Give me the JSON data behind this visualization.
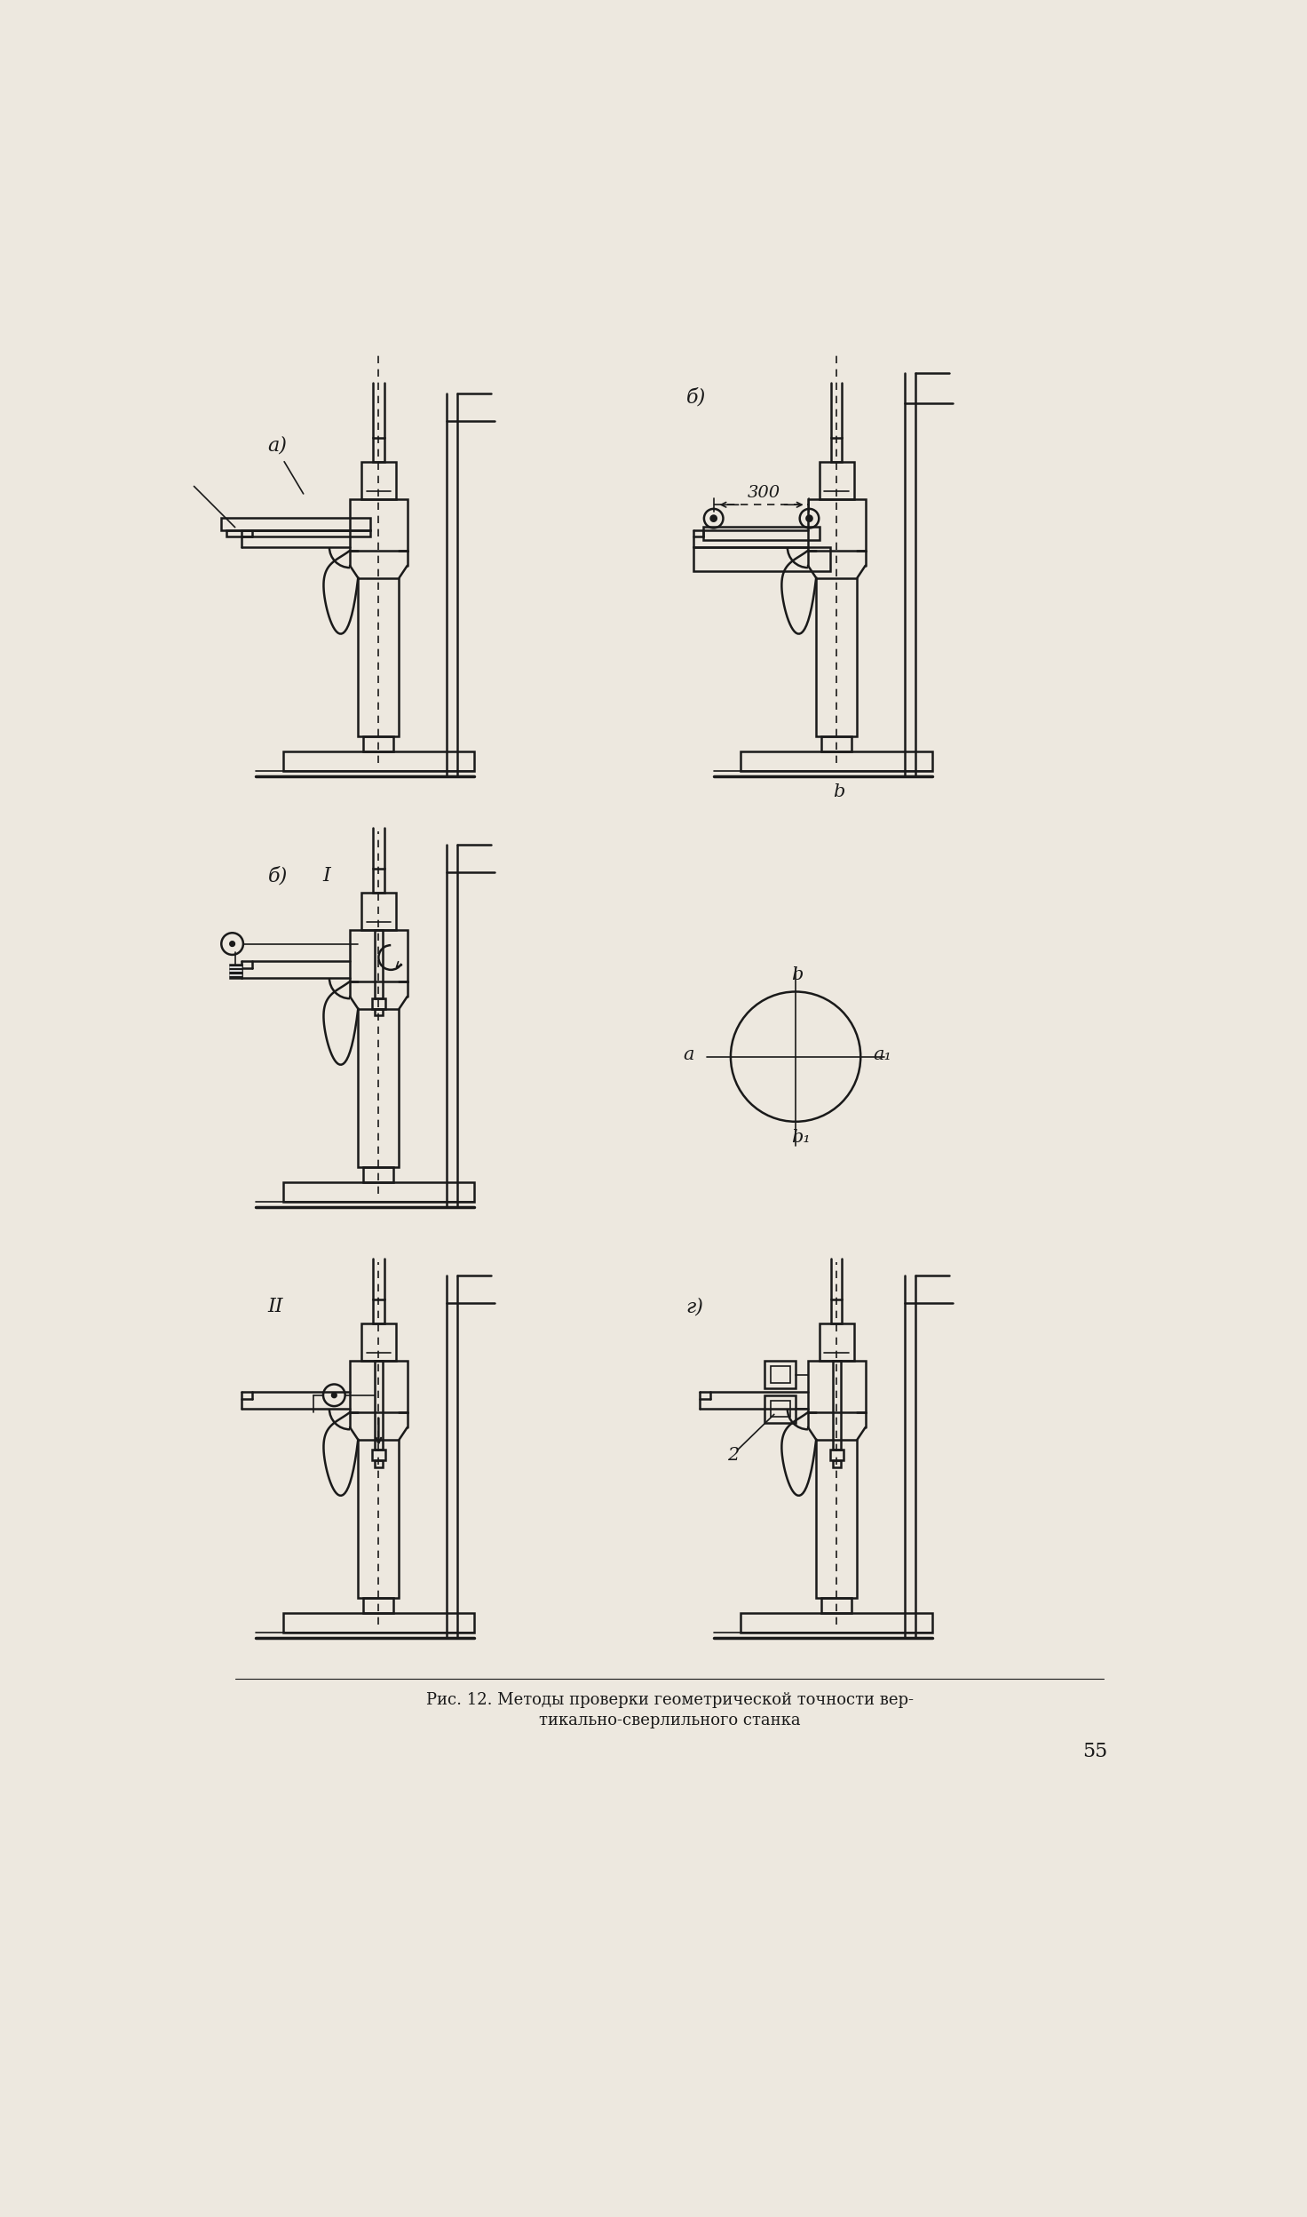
{
  "page_bg": "#ede8df",
  "line_color": "#1a1a1a",
  "title_line1": "Рис. 12. Методы проверки геометрической точности вер-",
  "title_line2": "тикально-сверлильного станка",
  "page_number": "55",
  "label_a": "а)",
  "label_b_tr": "б)",
  "label_b_ml": "б)",
  "label_I": "I",
  "label_II": "II",
  "label_g": "г)",
  "label_300": "300",
  "label_b_axis": "b",
  "label_b1_axis": "b₁",
  "label_a_axis": "a",
  "label_a1_axis": "a₁",
  "label_2": "2"
}
